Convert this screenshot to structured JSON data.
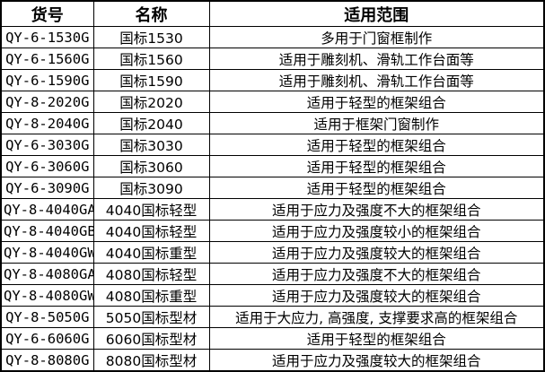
{
  "colors": {
    "border": "#000000",
    "text": "#000000",
    "background": "#ffffff"
  },
  "table": {
    "columns": [
      {
        "key": "code",
        "label": "货号"
      },
      {
        "key": "name",
        "label": "名称"
      },
      {
        "key": "scope",
        "label": "适用范围"
      }
    ],
    "rows": [
      {
        "code": "QY-6-1530G",
        "name": "国标1530",
        "scope": "多用于门窗框制作"
      },
      {
        "code": "QY-6-1560G",
        "name": "国标1560",
        "scope": "适用于雕刻机、滑轨工作台面等"
      },
      {
        "code": "QY-6-1590G",
        "name": "国标1590",
        "scope": "适用于雕刻机、滑轨工作台面等"
      },
      {
        "code": "QY-8-2020G",
        "name": "国标2020",
        "scope": "适用于轻型的框架组合"
      },
      {
        "code": "QY-8-2040G",
        "name": "国标2040",
        "scope": "适用于框架门窗制作"
      },
      {
        "code": "QY-6-3030G",
        "name": "国标3030",
        "scope": "适用于轻型的框架组合"
      },
      {
        "code": "QY-6-3060G",
        "name": "国标3060",
        "scope": "适用于轻型的框架组合"
      },
      {
        "code": "QY-6-3090G",
        "name": "国标3090",
        "scope": "适用于轻型的框架组合"
      },
      {
        "code": "QY-8-4040GA",
        "name": "4040国标轻型",
        "scope": "适用于应力及强度不大的框架组合"
      },
      {
        "code": "QY-8-4040GB",
        "name": "4040国标轻型",
        "scope": "适用于应力及强度较小的框架组合"
      },
      {
        "code": "QY-8-4040GW",
        "name": "4040国标重型",
        "scope": "适用于应力及强度较大的框架组合"
      },
      {
        "code": "QY-8-4080GA",
        "name": "4080国标轻型",
        "scope": "适用于应力及强度不大的框架组合"
      },
      {
        "code": "QY-8-4080GW",
        "name": "4080国标重型",
        "scope": "适用于应力及强度较大的框架组合"
      },
      {
        "code": "QY-8-5050G",
        "name": "5050国标型材",
        "scope": "适用于大应力, 高强度, 支撑要求高的框架组合"
      },
      {
        "code": "QY-6-6060G",
        "name": "6060国标型材",
        "scope": "适用于轻型的框架组合"
      },
      {
        "code": "QY-8-8080G",
        "name": "8080国标型材",
        "scope": "适用于应力及强度较大的框架组合"
      }
    ]
  }
}
